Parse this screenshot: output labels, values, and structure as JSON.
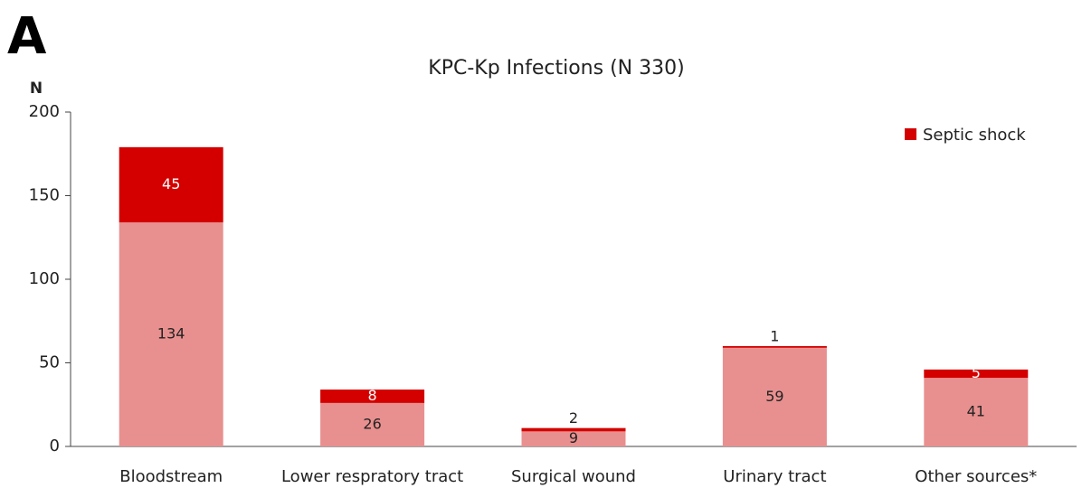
{
  "panel_label": "A",
  "chart_data": {
    "type": "stacked_bar",
    "title": "KPC-Kp Infections (N 330)",
    "y_label": "N",
    "categories": [
      "Bloodstream",
      "Lower respratory tract",
      "Surgical wound",
      "Urinary tract",
      "Other sources*"
    ],
    "series": [
      {
        "color": "#e8908f",
        "values": [
          134,
          26,
          9,
          59,
          41
        ]
      },
      {
        "name": "Septic shock",
        "color": "#d40000",
        "values": [
          45,
          8,
          2,
          1,
          5
        ]
      }
    ],
    "ylim": [
      0,
      200
    ],
    "yticks": [
      0,
      50,
      100,
      150,
      200
    ],
    "legend": "upper right",
    "grid": false
  }
}
